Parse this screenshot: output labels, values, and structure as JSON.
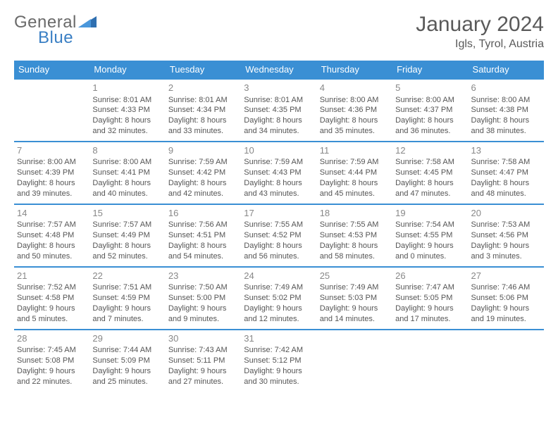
{
  "logo": {
    "text_a": "General",
    "text_b": "Blue"
  },
  "header": {
    "title": "January 2024",
    "location": "Igls, Tyrol, Austria"
  },
  "colors": {
    "header_bg": "#3a8fd4",
    "header_text": "#ffffff",
    "rule": "#3a8fd4",
    "logo_gray": "#6a6a6a",
    "logo_blue": "#3a7fc4",
    "body_text": "#555555",
    "daynum": "#888888"
  },
  "weekdays": [
    "Sunday",
    "Monday",
    "Tuesday",
    "Wednesday",
    "Thursday",
    "Friday",
    "Saturday"
  ],
  "weeks": [
    [
      null,
      {
        "n": "1",
        "sr": "8:01 AM",
        "ss": "4:33 PM",
        "dl": "8 hours and 32 minutes."
      },
      {
        "n": "2",
        "sr": "8:01 AM",
        "ss": "4:34 PM",
        "dl": "8 hours and 33 minutes."
      },
      {
        "n": "3",
        "sr": "8:01 AM",
        "ss": "4:35 PM",
        "dl": "8 hours and 34 minutes."
      },
      {
        "n": "4",
        "sr": "8:00 AM",
        "ss": "4:36 PM",
        "dl": "8 hours and 35 minutes."
      },
      {
        "n": "5",
        "sr": "8:00 AM",
        "ss": "4:37 PM",
        "dl": "8 hours and 36 minutes."
      },
      {
        "n": "6",
        "sr": "8:00 AM",
        "ss": "4:38 PM",
        "dl": "8 hours and 38 minutes."
      }
    ],
    [
      {
        "n": "7",
        "sr": "8:00 AM",
        "ss": "4:39 PM",
        "dl": "8 hours and 39 minutes."
      },
      {
        "n": "8",
        "sr": "8:00 AM",
        "ss": "4:41 PM",
        "dl": "8 hours and 40 minutes."
      },
      {
        "n": "9",
        "sr": "7:59 AM",
        "ss": "4:42 PM",
        "dl": "8 hours and 42 minutes."
      },
      {
        "n": "10",
        "sr": "7:59 AM",
        "ss": "4:43 PM",
        "dl": "8 hours and 43 minutes."
      },
      {
        "n": "11",
        "sr": "7:59 AM",
        "ss": "4:44 PM",
        "dl": "8 hours and 45 minutes."
      },
      {
        "n": "12",
        "sr": "7:58 AM",
        "ss": "4:45 PM",
        "dl": "8 hours and 47 minutes."
      },
      {
        "n": "13",
        "sr": "7:58 AM",
        "ss": "4:47 PM",
        "dl": "8 hours and 48 minutes."
      }
    ],
    [
      {
        "n": "14",
        "sr": "7:57 AM",
        "ss": "4:48 PM",
        "dl": "8 hours and 50 minutes."
      },
      {
        "n": "15",
        "sr": "7:57 AM",
        "ss": "4:49 PM",
        "dl": "8 hours and 52 minutes."
      },
      {
        "n": "16",
        "sr": "7:56 AM",
        "ss": "4:51 PM",
        "dl": "8 hours and 54 minutes."
      },
      {
        "n": "17",
        "sr": "7:55 AM",
        "ss": "4:52 PM",
        "dl": "8 hours and 56 minutes."
      },
      {
        "n": "18",
        "sr": "7:55 AM",
        "ss": "4:53 PM",
        "dl": "8 hours and 58 minutes."
      },
      {
        "n": "19",
        "sr": "7:54 AM",
        "ss": "4:55 PM",
        "dl": "9 hours and 0 minutes."
      },
      {
        "n": "20",
        "sr": "7:53 AM",
        "ss": "4:56 PM",
        "dl": "9 hours and 3 minutes."
      }
    ],
    [
      {
        "n": "21",
        "sr": "7:52 AM",
        "ss": "4:58 PM",
        "dl": "9 hours and 5 minutes."
      },
      {
        "n": "22",
        "sr": "7:51 AM",
        "ss": "4:59 PM",
        "dl": "9 hours and 7 minutes."
      },
      {
        "n": "23",
        "sr": "7:50 AM",
        "ss": "5:00 PM",
        "dl": "9 hours and 9 minutes."
      },
      {
        "n": "24",
        "sr": "7:49 AM",
        "ss": "5:02 PM",
        "dl": "9 hours and 12 minutes."
      },
      {
        "n": "25",
        "sr": "7:49 AM",
        "ss": "5:03 PM",
        "dl": "9 hours and 14 minutes."
      },
      {
        "n": "26",
        "sr": "7:47 AM",
        "ss": "5:05 PM",
        "dl": "9 hours and 17 minutes."
      },
      {
        "n": "27",
        "sr": "7:46 AM",
        "ss": "5:06 PM",
        "dl": "9 hours and 19 minutes."
      }
    ],
    [
      {
        "n": "28",
        "sr": "7:45 AM",
        "ss": "5:08 PM",
        "dl": "9 hours and 22 minutes."
      },
      {
        "n": "29",
        "sr": "7:44 AM",
        "ss": "5:09 PM",
        "dl": "9 hours and 25 minutes."
      },
      {
        "n": "30",
        "sr": "7:43 AM",
        "ss": "5:11 PM",
        "dl": "9 hours and 27 minutes."
      },
      {
        "n": "31",
        "sr": "7:42 AM",
        "ss": "5:12 PM",
        "dl": "9 hours and 30 minutes."
      },
      null,
      null,
      null
    ]
  ],
  "labels": {
    "sunrise": "Sunrise: ",
    "sunset": "Sunset: ",
    "daylight": "Daylight: "
  }
}
